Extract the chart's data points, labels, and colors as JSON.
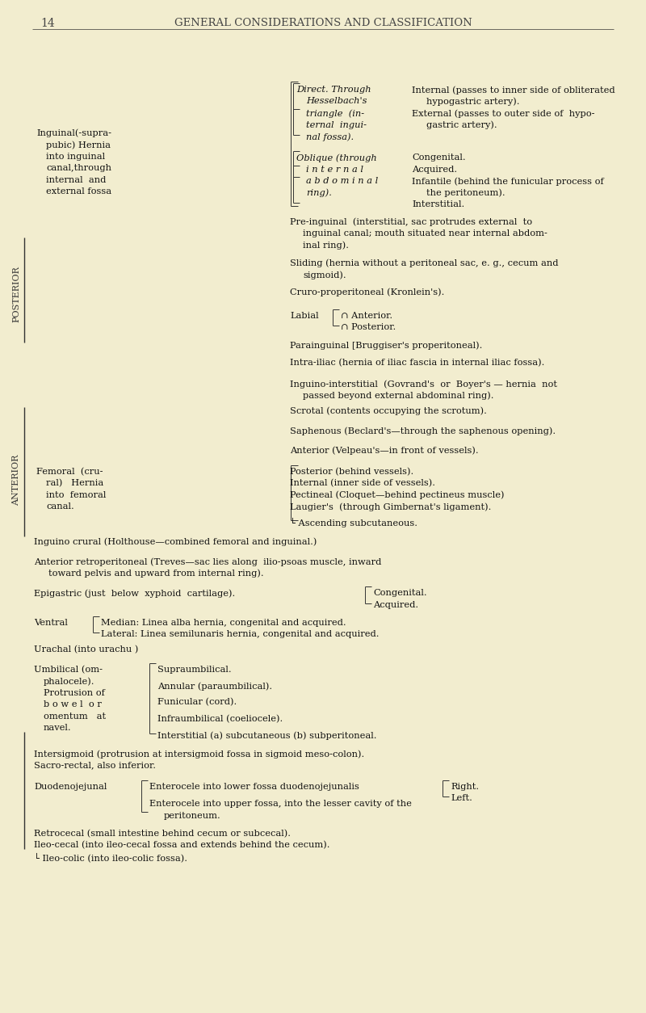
{
  "bg_color": "#f2edcf",
  "page_number": "14",
  "header": "GENERAL CONSIDERATIONS AND CLASSIFICATION",
  "text_color": "#1a1a1a",
  "fs": 8.2,
  "lh": 14.5
}
